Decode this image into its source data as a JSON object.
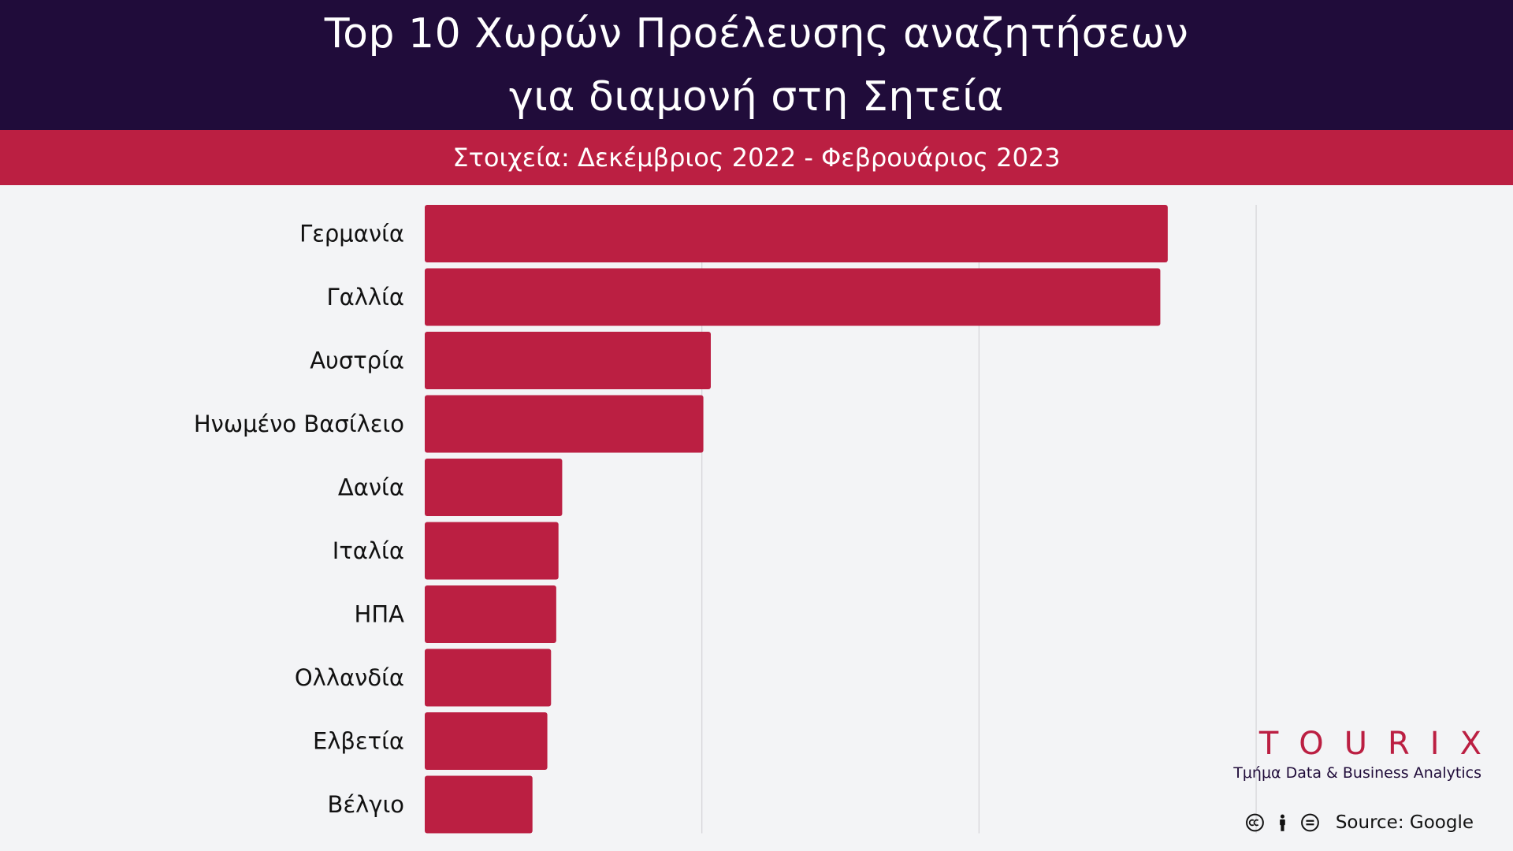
{
  "header": {
    "title_line1": "Top 10 Χωρών Προέλευσης αναζητήσεων",
    "title_line2": "για διαμονή στη Σητεία",
    "subtitle": "Στοιχεία: Δεκέμβριος 2022 - Φεβρουάριος 2023"
  },
  "colors": {
    "header_bg": "#200c3a",
    "accent": "#bb1f42",
    "page_bg": "#f3f4f6",
    "gridline": "#d4d4d8",
    "label": "#111111"
  },
  "chart_data": {
    "type": "bar",
    "orientation": "horizontal",
    "title": "Top 10 Χωρών Προέλευσης αναζητήσεων για διαμονή στη Σητεία",
    "subtitle": "Στοιχεία: Δεκέμβριος 2022 - Φεβρουάριος 2023",
    "categories": [
      "Γερμανία",
      "Γαλλία",
      "Αυστρία",
      "Ηνωμένο Βασίλειο",
      "Δανία",
      "Ιταλία",
      "ΗΠΑ",
      "Ολλανδία",
      "Ελβετία",
      "Βέλγιο"
    ],
    "values": [
      100,
      99,
      38.5,
      37.5,
      18.5,
      18,
      17.7,
      17,
      16.5,
      14.5
    ],
    "xlim": [
      0,
      112
    ],
    "gridlines_at": [
      37.3,
      74.6,
      111.9
    ],
    "grid": true,
    "legend": "none",
    "xlabel": "",
    "ylabel": ""
  },
  "branding": {
    "logo_text": "TOURIX",
    "department": "Τμήμα Data & Business Analytics"
  },
  "footer": {
    "license_icons": [
      "cc-icon",
      "by-person-icon",
      "nd-equals-icon"
    ],
    "source": "Source: Google"
  }
}
